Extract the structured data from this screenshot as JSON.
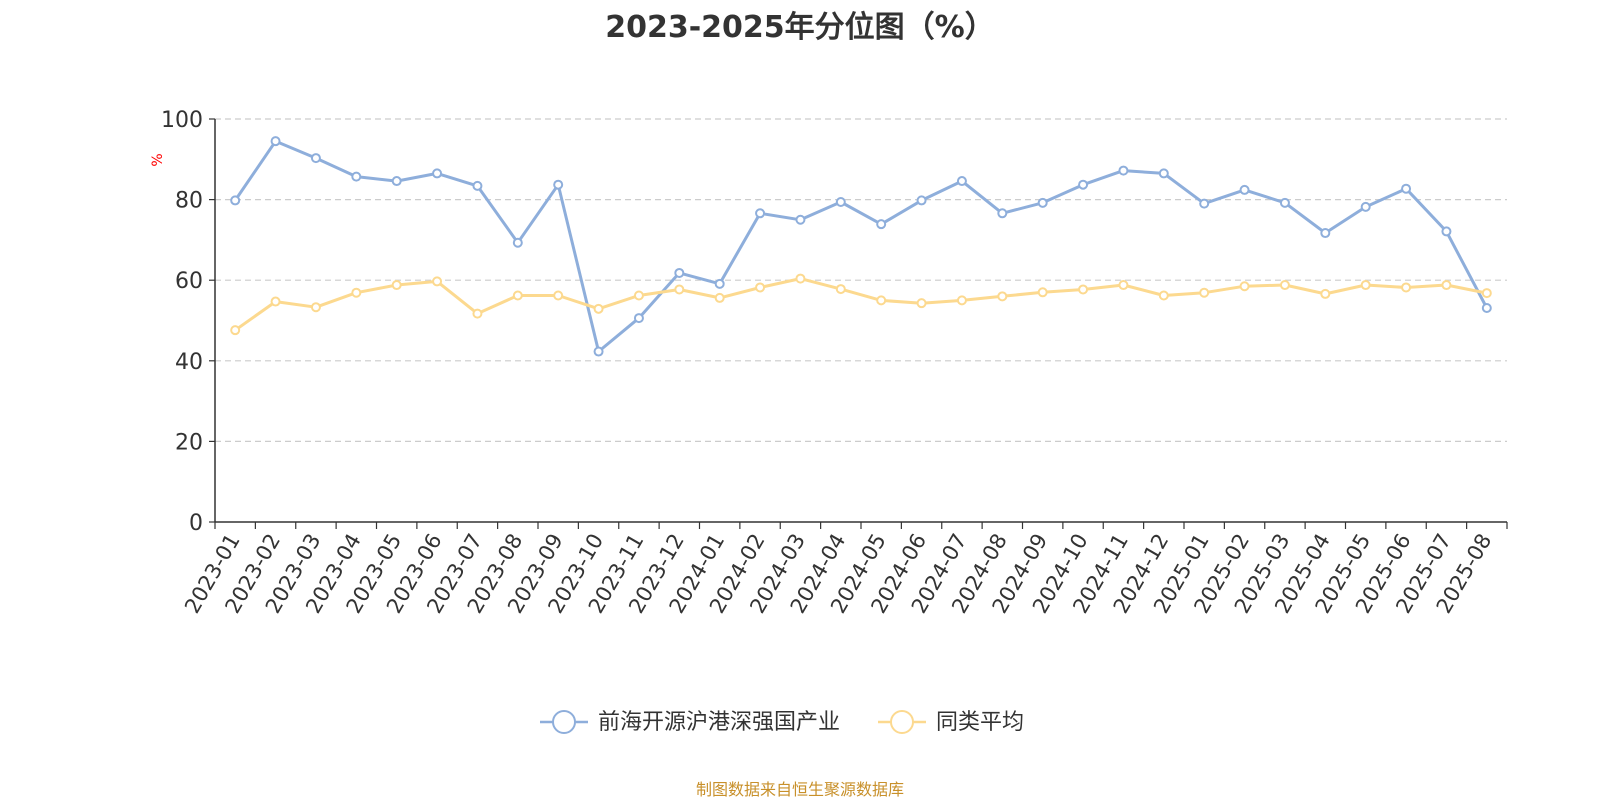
{
  "chart_data": {
    "type": "line",
    "title": "2023-2025年分位图（%）",
    "ylabel": "%",
    "ylim": [
      0,
      100
    ],
    "yticks": [
      0,
      20,
      40,
      60,
      80,
      100
    ],
    "grid": true,
    "legend_position": "bottom-center",
    "categories": [
      "2023-01",
      "2023-02",
      "2023-03",
      "2023-04",
      "2023-05",
      "2023-06",
      "2023-07",
      "2023-08",
      "2023-09",
      "2023-10",
      "2023-11",
      "2023-12",
      "2024-01",
      "2024-02",
      "2024-03",
      "2024-04",
      "2024-05",
      "2024-06",
      "2024-07",
      "2024-08",
      "2024-09",
      "2024-10",
      "2024-11",
      "2024-12",
      "2025-01",
      "2025-02",
      "2025-03",
      "2025-04",
      "2025-05",
      "2025-06",
      "2025-07",
      "2025-08"
    ],
    "series": [
      {
        "name": "前海开源沪港深强国产业",
        "color": "#8eaedb",
        "values": [
          79.8,
          94.5,
          90.3,
          85.7,
          84.6,
          86.5,
          83.4,
          69.3,
          83.7,
          42.3,
          50.6,
          61.8,
          59.1,
          76.6,
          75.0,
          79.4,
          73.9,
          79.8,
          84.6,
          76.6,
          79.2,
          83.7,
          87.2,
          86.5,
          79.0,
          82.4,
          79.2,
          71.7,
          78.2,
          82.7,
          72.1,
          53.1
        ]
      },
      {
        "name": "同类平均",
        "color": "#fcd98f",
        "values": [
          47.6,
          54.7,
          53.3,
          56.9,
          58.8,
          59.7,
          51.7,
          56.2,
          56.2,
          52.9,
          56.2,
          57.7,
          55.6,
          58.2,
          60.4,
          57.8,
          55.0,
          54.3,
          55.0,
          56.0,
          57.0,
          57.7,
          58.8,
          56.2,
          56.9,
          58.5,
          58.8,
          56.6,
          58.8,
          58.2,
          58.8,
          56.8
        ]
      }
    ]
  },
  "colors": {
    "axis": "#333333",
    "grid": "#cccccc",
    "ylabel": "#ff0000",
    "title": "#333333",
    "source": "#c8902a"
  },
  "source_note": "制图数据来自恒生聚源数据库"
}
